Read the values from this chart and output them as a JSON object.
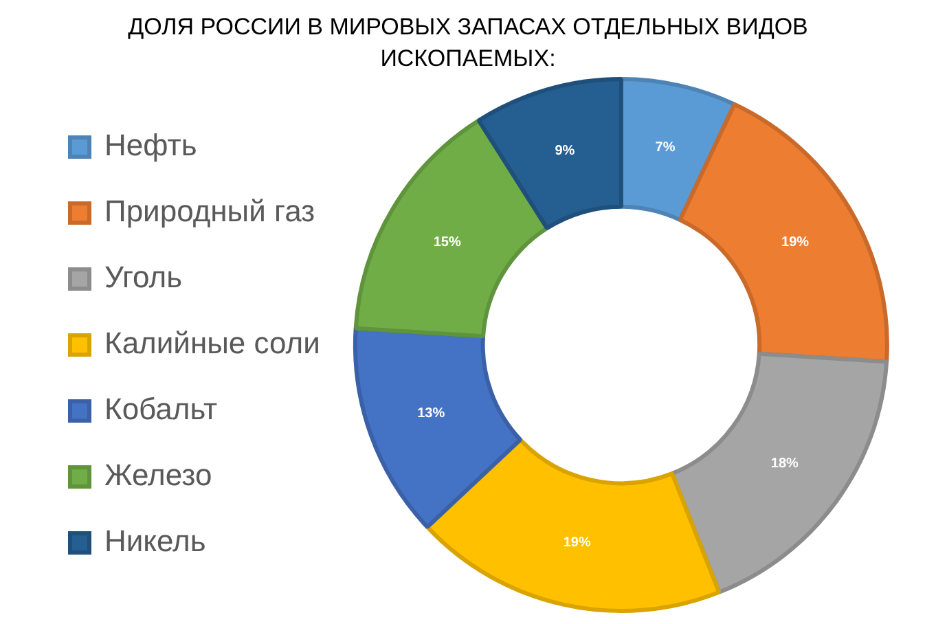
{
  "chart_data": {
    "type": "donut",
    "title": "ДОЛЯ РОССИИ В МИРОВЫХ ЗАПАСАХ ОТДЕЛЬНЫХ ВИДОВ ИСКОПАЕМЫХ:",
    "categories": [
      "Нефть",
      "Природный газ",
      "Уголь",
      "Калийные соли",
      "Кобальт",
      "Железо",
      "Никель"
    ],
    "values": [
      7,
      19,
      18,
      19,
      13,
      15,
      9
    ],
    "colors": [
      "#5b9bd5",
      "#ed7d31",
      "#a5a5a5",
      "#ffc000",
      "#4472c4",
      "#70ad47",
      "#255e91"
    ],
    "value_labels": [
      "7%",
      "19%",
      "18%",
      "19%",
      "13%",
      "15%",
      "9%"
    ],
    "legend": "left"
  }
}
